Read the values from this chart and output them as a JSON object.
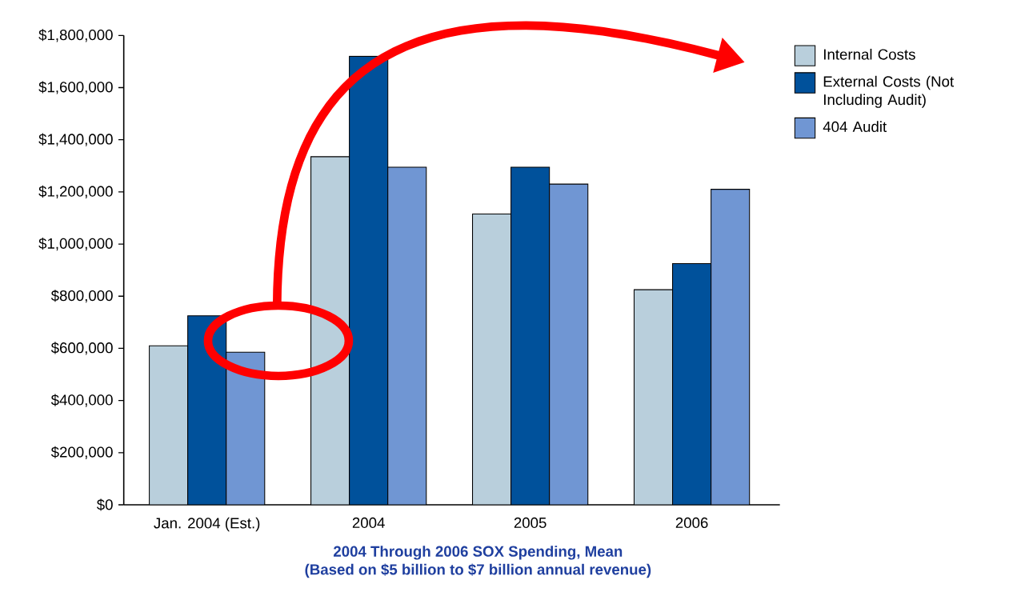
{
  "chart_data": {
    "type": "bar",
    "title": "2004 Through 2006 SOX Spending, Mean",
    "subtitle": "(Based on $5 billion to $7 billion annual revenue)",
    "categories": [
      "Jan. 2004 (Est.)",
      "2004",
      "2005",
      "2006"
    ],
    "series": [
      {
        "name": "Internal Costs",
        "color": "#b9cfdc",
        "values": [
          610000,
          1335000,
          1115000,
          825000
        ]
      },
      {
        "name": "External Costs (Not Including Audit)",
        "color": "#00519b",
        "values": [
          725000,
          1720000,
          1295000,
          925000
        ]
      },
      {
        "name": "404 Audit",
        "color": "#7096d3",
        "values": [
          585000,
          1295000,
          1230000,
          1210000
        ]
      }
    ],
    "ylim": [
      0,
      1800000
    ],
    "yticks": [
      {
        "value": 0,
        "label": "$0"
      },
      {
        "value": 200000,
        "label": "$200,000"
      },
      {
        "value": 400000,
        "label": "$400,000"
      },
      {
        "value": 600000,
        "label": "$600,000"
      },
      {
        "value": 800000,
        "label": "$800,000"
      },
      {
        "value": 1000000,
        "label": "$1,000,000"
      },
      {
        "value": 1200000,
        "label": "$1,200,000"
      },
      {
        "value": 1400000,
        "label": "$1,400,000"
      },
      {
        "value": 1600000,
        "label": "$1,600,000"
      },
      {
        "value": 1800000,
        "label": "$1,800,000"
      }
    ],
    "grid": false,
    "legend": "top right"
  }
}
